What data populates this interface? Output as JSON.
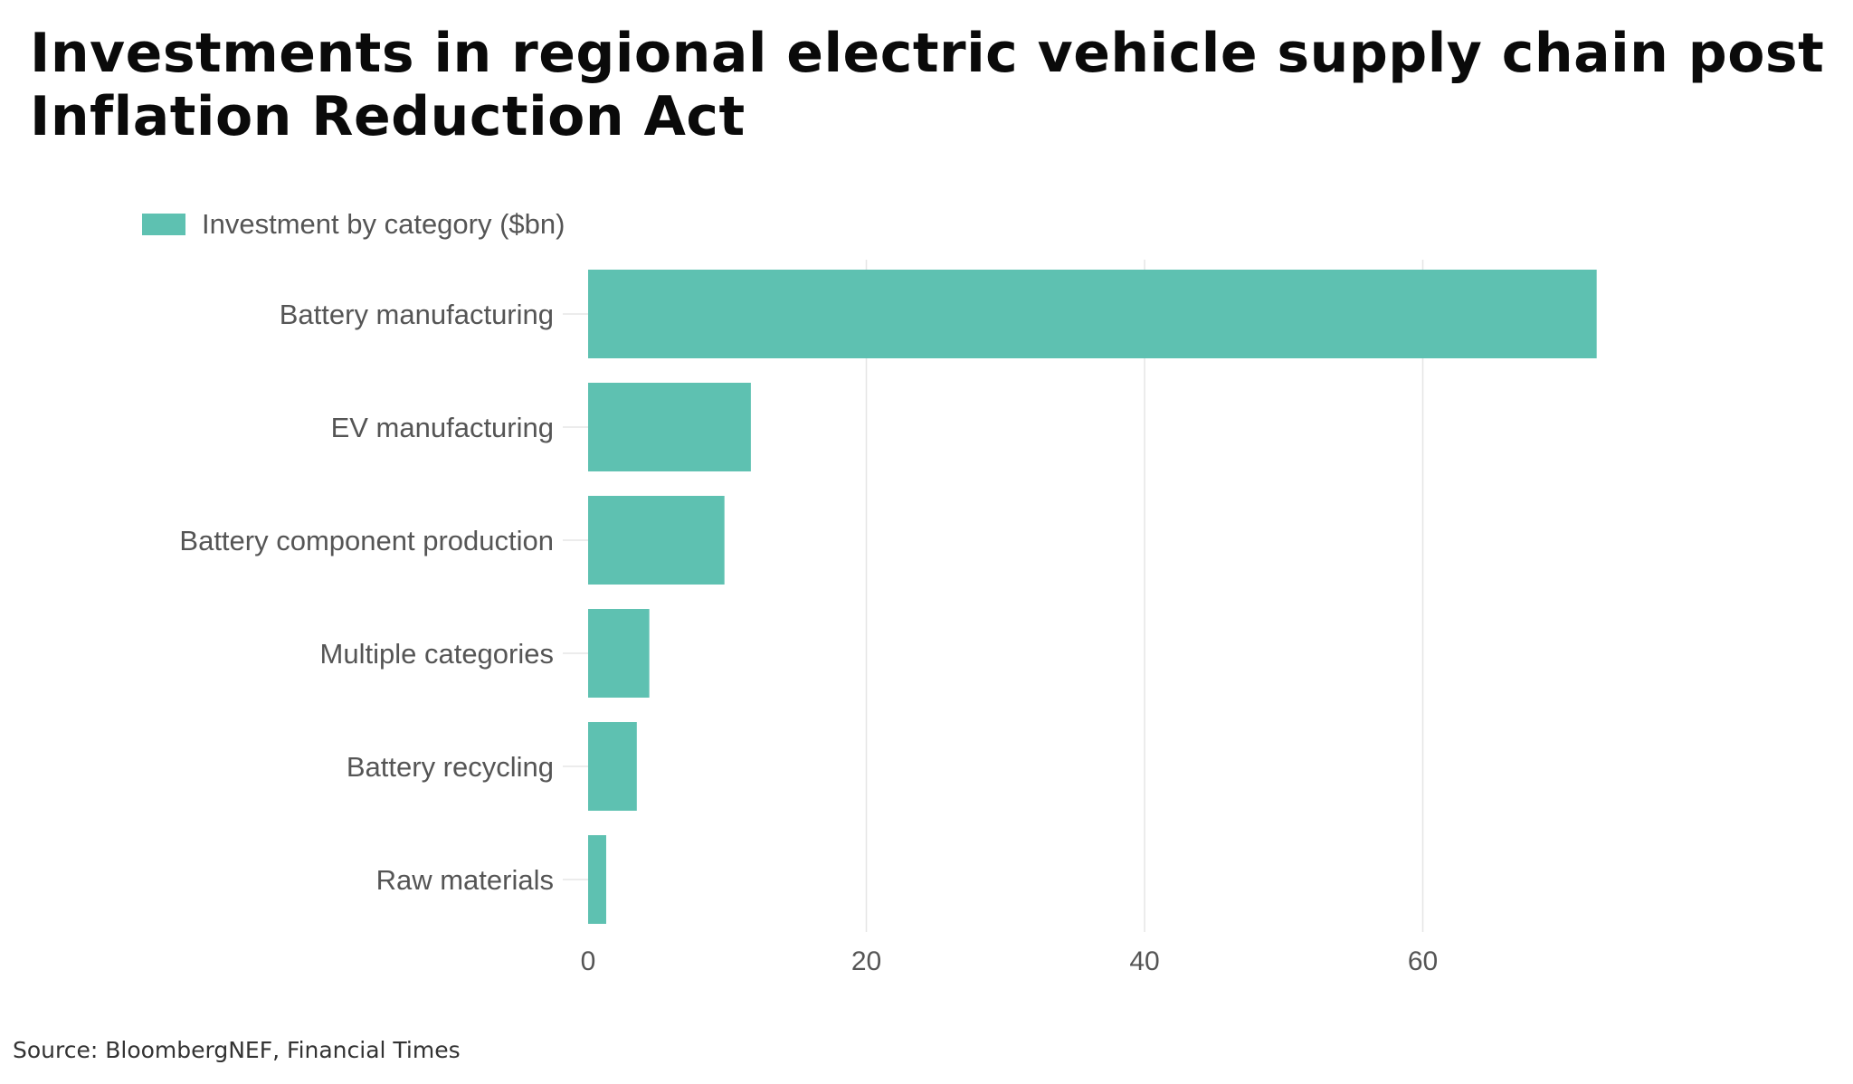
{
  "title": "Investments in regional electric vehicle supply chain post Inflation Reduction Act",
  "source": "Source: BloombergNEF, Financial Times",
  "colors": {
    "bar": "#5ec1b1",
    "grid": "#e6e6e6",
    "label": "#555555"
  },
  "chart_data": {
    "type": "bar",
    "orientation": "horizontal",
    "categories": [
      "Battery manufacturing",
      "EV manufacturing",
      "Battery component production",
      "Multiple categories",
      "Battery recycling",
      "Raw materials"
    ],
    "series": [
      {
        "name": "Investment by category ($bn)",
        "values": [
          72.5,
          11.7,
          9.8,
          4.4,
          3.5,
          1.3
        ]
      }
    ],
    "xticks": [
      0,
      20,
      40,
      60
    ],
    "xlim": [
      0,
      80
    ],
    "grid": true,
    "legend": "top-left"
  }
}
